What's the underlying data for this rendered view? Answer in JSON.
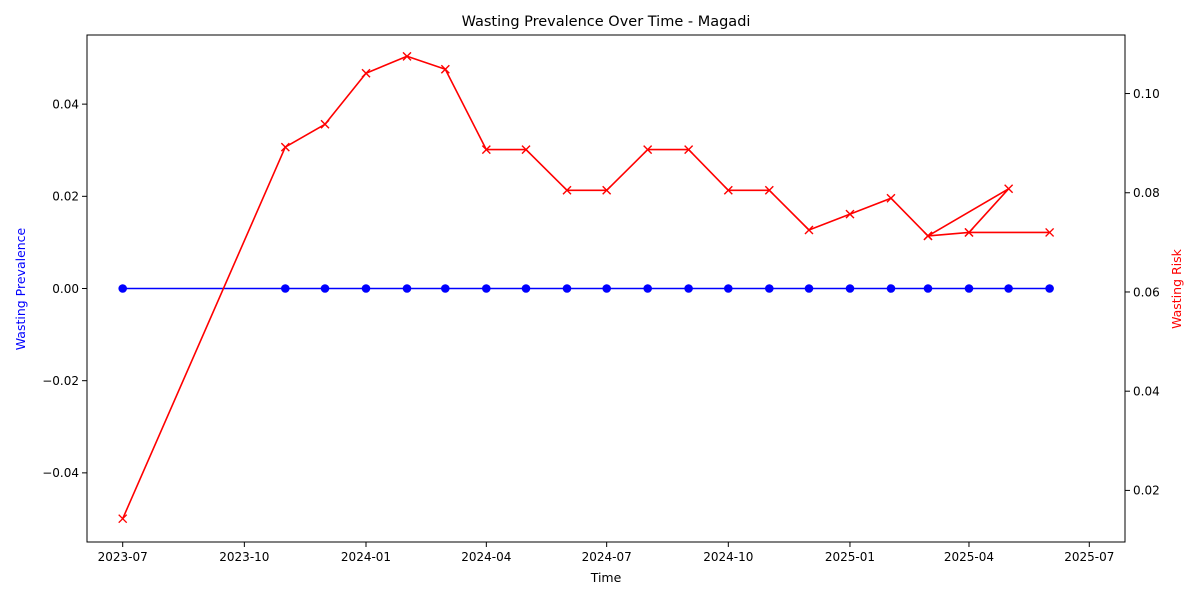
{
  "chart_data": {
    "type": "line",
    "title": "Wasting Prevalence Over Time - Magadi",
    "xlabel": "Time",
    "ylabel_left": "Wasting Prevalence",
    "ylabel_right": "Wasting Risk",
    "x_ticks": [
      "2023-07",
      "2023-10",
      "2024-01",
      "2024-04",
      "2024-07",
      "2024-10",
      "2025-01",
      "2025-04",
      "2025-07"
    ],
    "y_left_ticks": [
      "−0.04",
      "−0.02",
      "0.00",
      "0.02",
      "0.04"
    ],
    "y_right_ticks": [
      "0.02",
      "0.04",
      "0.06",
      "0.08",
      "0.10"
    ],
    "x_range": [
      "2023-06-04",
      "2025-07-28"
    ],
    "ylim_left": [
      -0.055,
      0.055
    ],
    "ylim_right": [
      0.0096,
      0.1118
    ],
    "grid": false,
    "series": [
      {
        "axis": "left",
        "color": "#0000ff",
        "marker": "circle",
        "x": [
          "2023-07-01",
          "2023-11-01",
          "2023-12-01",
          "2024-01-01",
          "2024-02-01",
          "2024-03-01",
          "2024-04-01",
          "2024-05-01",
          "2024-06-01",
          "2024-07-01",
          "2024-08-01",
          "2024-09-01",
          "2024-10-01",
          "2024-11-01",
          "2024-12-01",
          "2025-01-01",
          "2025-02-01",
          "2025-03-01",
          "2025-04-01",
          "2025-05-01",
          "2025-06-01"
        ],
        "values": [
          0,
          0,
          0,
          0,
          0,
          0,
          0,
          0,
          0,
          0,
          0,
          0,
          0,
          0,
          0,
          0,
          0,
          0,
          0,
          0,
          0
        ]
      },
      {
        "axis": "right",
        "color": "#ff0000",
        "marker": "x",
        "x": [
          "2023-07-01",
          "2023-11-01",
          "2023-12-01",
          "2024-01-01",
          "2024-02-01",
          "2024-03-01",
          "2024-04-01",
          "2024-05-01",
          "2024-06-01",
          "2024-07-01",
          "2024-08-01",
          "2024-09-01",
          "2024-10-01",
          "2024-11-01",
          "2024-12-01",
          "2025-01-01",
          "2025-02-01",
          "2025-03-01",
          "2025-04-01",
          "2025-05-01",
          "2025-03-01",
          "2025-04-01",
          "2025-06-01"
        ],
        "values": [
          0.0143,
          0.0892,
          0.0938,
          0.1041,
          0.1075,
          0.1049,
          0.0887,
          0.0887,
          0.0805,
          0.0805,
          0.0887,
          0.0887,
          0.0805,
          0.0805,
          0.0725,
          0.0757,
          0.0789,
          0.0713,
          0.072,
          0.0808,
          0.0713,
          0.072,
          0.072
        ]
      }
    ]
  }
}
